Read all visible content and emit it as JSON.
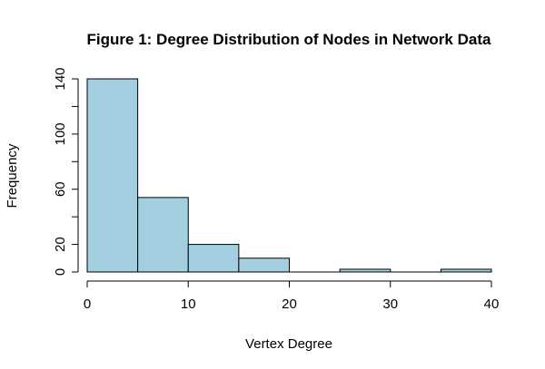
{
  "chart_data": {
    "type": "bar",
    "title": "Figure 1: Degree Distribution of Nodes in Network Data",
    "xlabel": "Vertex Degree",
    "ylabel": "Frequency",
    "bins": [
      [
        0,
        5
      ],
      [
        5,
        10
      ],
      [
        10,
        15
      ],
      [
        15,
        20
      ],
      [
        20,
        25
      ],
      [
        25,
        30
      ],
      [
        30,
        35
      ],
      [
        35,
        40
      ]
    ],
    "values": [
      140,
      54,
      20,
      10,
      0,
      2,
      0,
      2
    ],
    "xlim": [
      0,
      40
    ],
    "ylim": [
      0,
      140
    ],
    "x_ticks": [
      0,
      10,
      20,
      30,
      40
    ],
    "x_tick_labels": [
      "0",
      "10",
      "20",
      "30",
      "40"
    ],
    "y_ticks": [
      0,
      20,
      40,
      60,
      80,
      100,
      120,
      140
    ],
    "y_tick_labels": [
      "0",
      "20",
      "",
      "60",
      "",
      "100",
      "",
      "140"
    ],
    "bar_color": "#a3cfe0",
    "grid": false,
    "legend": "none"
  }
}
